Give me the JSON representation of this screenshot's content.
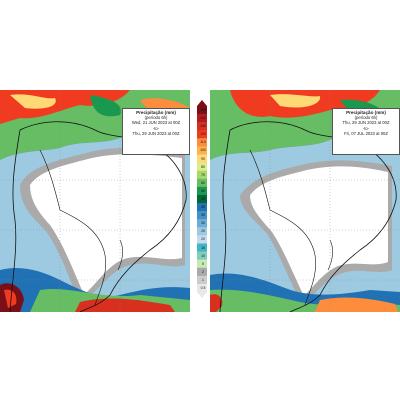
{
  "panels": [
    {
      "title": "Precipitação (mm)",
      "subtitle": "(período 6h)",
      "start": "Wed, 21 JUN 2023 at 00Z",
      "separator": "-to-",
      "end": "Thu, 29 JUN 2023 at 00Z"
    },
    {
      "title": "Precipitação (mm)",
      "subtitle": "(período 6h)",
      "start": "Thu, 29 JUN 2023 at 00Z",
      "separator": "-to-",
      "end": "Fri, 07 JUL 2023 at 00Z"
    }
  ],
  "colorbar": {
    "labels": [
      "150",
      "140",
      "130",
      "120",
      "110",
      "100",
      "90",
      "80",
      "70",
      "60",
      "50",
      "45",
      "40",
      "35",
      "30",
      "25",
      "20",
      "15",
      "10",
      "5",
      "2",
      "1",
      "0.5"
    ],
    "colors": [
      "#7b0f17",
      "#b51b1d",
      "#d7301f",
      "#f03b20",
      "#fd8d3c",
      "#feb24c",
      "#fed976",
      "#d9ef8b",
      "#a6d96a",
      "#66bd63",
      "#1a9850",
      "#006837",
      "#2171b5",
      "#4292c6",
      "#6baed6",
      "#9ecae1",
      "#c6dbef",
      "#41b6c4",
      "#7fcdbb",
      "#c7e9b4",
      "#aaaaaa",
      "#cccccc",
      "#e8e8e8"
    ]
  }
}
